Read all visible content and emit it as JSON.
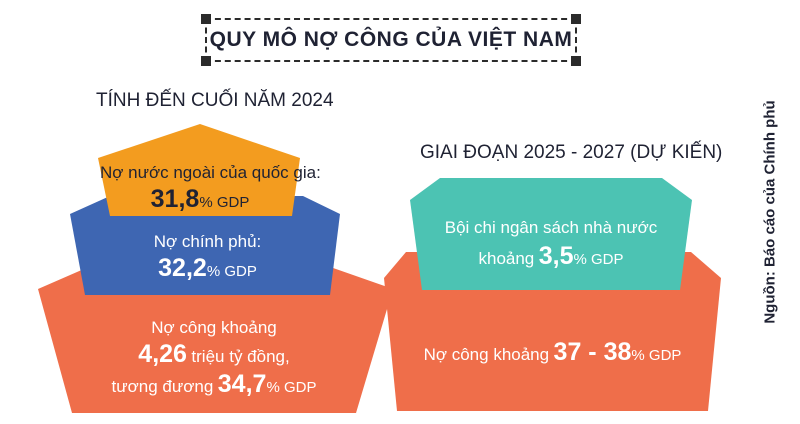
{
  "title": "QUY MÔ NỢ CÔNG CỦA VIỆT NAM",
  "left_heading": "TÍNH ĐẾN CUỐI NĂM 2024",
  "right_heading": "GIAI ĐOẠN 2025 - 2027 (DỰ KIẾN)",
  "colors": {
    "orange": "#f39c1f",
    "blue": "#3e66b2",
    "coral": "#ef6e4a",
    "teal": "#4cc3b3"
  },
  "left_pyramid": {
    "top": {
      "line1": "Nợ nước ngoài của quốc gia:",
      "value": "31,8",
      "unit": "% GDP"
    },
    "middle": {
      "line1": "Nợ chính phủ:",
      "value": "32,2",
      "unit": "% GDP"
    },
    "bottom": {
      "line1": "Nợ công khoảng",
      "value": "4,26",
      "value_suffix": "triệu tỷ đồng,",
      "line3_prefix": "tương đương",
      "value2": "34,7",
      "unit": "% GDP"
    }
  },
  "right_stack": {
    "top": {
      "line1": "Bội chi ngân sách nhà nước",
      "prefix": "khoảng",
      "value": "3,5",
      "unit": "% GDP"
    },
    "bottom": {
      "prefix": "Nợ công khoảng",
      "value": "37 - 38",
      "unit": "% GDP"
    }
  },
  "source": "Nguồn: Báo cáo của Chính phủ"
}
